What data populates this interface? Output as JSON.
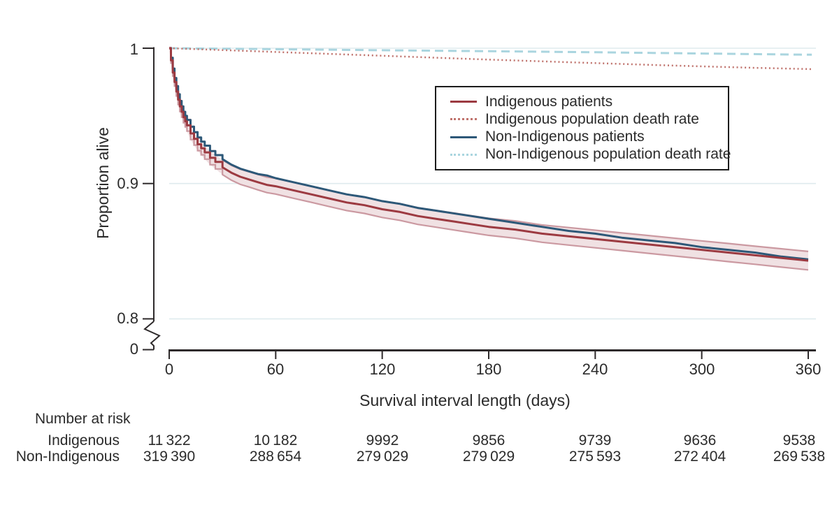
{
  "colors": {
    "indigenous_line": "#9c3a41",
    "indigenous_ci_edge": "#cb99a1",
    "indigenous_ci_fill": "#f0e1e3",
    "indigenous_rate_line": "#c0736d",
    "non_indigenous_line": "#2d5878",
    "non_indigenous_rate_line": "#aad5df",
    "gridline": "#dfebee",
    "axis": "#2e2a2b",
    "text": "#2b2b2b",
    "legend_border": "#1b1b1b"
  },
  "chart_data": {
    "type": "line",
    "subtype": "kaplan-meier-survival",
    "title": "",
    "xlabel": "Survival interval length (days)",
    "ylabel": "Proportion alive",
    "xlim": [
      0,
      365
    ],
    "ylim_shown": [
      0.8,
      1.0
    ],
    "y_axis_break_between": [
      0.8,
      0
    ],
    "x_ticks": [
      0,
      60,
      120,
      180,
      240,
      300,
      360
    ],
    "x_tick_labels": [
      "0",
      "60",
      "120",
      "180",
      "240",
      "300",
      "360"
    ],
    "y_ticks": [
      1,
      0.9,
      0.8
    ],
    "y_tick_labels": [
      "1",
      "0.9",
      "0.8",
      "0"
    ],
    "grid": "horizontal light lines at 1.0, 0.9 and 0.8",
    "legend_position": "upper right inside plot, boxed",
    "series": [
      {
        "name": "Indigenous patients",
        "style": "solid",
        "color": "#9c3a41",
        "ci_fill": "#f0e1e3",
        "ci_edge": "#cb99a1",
        "x": [
          0,
          1,
          2,
          3,
          4,
          5,
          6,
          7,
          8,
          9,
          10,
          12,
          14,
          16,
          18,
          20,
          23,
          26,
          30,
          35,
          40,
          45,
          50,
          55,
          60,
          70,
          80,
          90,
          100,
          110,
          120,
          130,
          140,
          150,
          160,
          170,
          180,
          195,
          210,
          225,
          240,
          255,
          270,
          285,
          300,
          315,
          330,
          345,
          360
        ],
        "y": [
          1,
          0.991,
          0.982,
          0.975,
          0.968,
          0.962,
          0.957,
          0.953,
          0.949,
          0.946,
          0.943,
          0.937,
          0.933,
          0.929,
          0.926,
          0.923,
          0.919,
          0.916,
          0.912,
          0.908,
          0.905,
          0.903,
          0.901,
          0.899,
          0.898,
          0.895,
          0.892,
          0.889,
          0.886,
          0.884,
          0.881,
          0.879,
          0.876,
          0.874,
          0.872,
          0.87,
          0.868,
          0.866,
          0.863,
          0.861,
          0.859,
          0.857,
          0.855,
          0.853,
          0.851,
          0.849,
          0.847,
          0.845,
          0.843
        ],
        "ci_halfwidth": [
          0.0005,
          0.002,
          0.0026,
          0.003,
          0.0033,
          0.0036,
          0.0038,
          0.004,
          0.0041,
          0.0042,
          0.0043,
          0.0045,
          0.0046,
          0.0047,
          0.0048,
          0.005,
          0.0051,
          0.0052,
          0.0054,
          0.0055,
          0.0056,
          0.0056,
          0.0057,
          0.0057,
          0.0058,
          0.0059,
          0.0059,
          0.006,
          0.006,
          0.0061,
          0.0061,
          0.0062,
          0.0062,
          0.0062,
          0.0063,
          0.0063,
          0.0063,
          0.0064,
          0.0064,
          0.0065,
          0.0065,
          0.0065,
          0.0066,
          0.0066,
          0.0066,
          0.0067,
          0.0067,
          0.0068,
          0.0068
        ]
      },
      {
        "name": "Indigenous population death rate",
        "style": "dotted",
        "color": "#c0736d",
        "x": [
          0,
          30,
          60,
          90,
          120,
          150,
          180,
          210,
          240,
          270,
          300,
          330,
          360,
          362
        ],
        "y": [
          1,
          0.9986,
          0.9972,
          0.9958,
          0.9944,
          0.993,
          0.9916,
          0.9903,
          0.989,
          0.9877,
          0.9866,
          0.9855,
          0.9846,
          0.9845
        ]
      },
      {
        "name": "Non-Indigenous patients",
        "style": "solid",
        "color": "#2d5878",
        "x": [
          0,
          1,
          2,
          3,
          4,
          5,
          6,
          7,
          8,
          9,
          10,
          12,
          14,
          16,
          18,
          20,
          23,
          26,
          30,
          35,
          40,
          45,
          50,
          55,
          60,
          70,
          80,
          90,
          100,
          110,
          120,
          130,
          140,
          150,
          160,
          170,
          180,
          195,
          210,
          225,
          240,
          255,
          270,
          285,
          300,
          315,
          330,
          345,
          360
        ],
        "y": [
          1,
          0.993,
          0.985,
          0.978,
          0.972,
          0.966,
          0.961,
          0.957,
          0.953,
          0.95,
          0.947,
          0.942,
          0.938,
          0.934,
          0.931,
          0.928,
          0.924,
          0.921,
          0.918,
          0.914,
          0.911,
          0.909,
          0.907,
          0.906,
          0.904,
          0.901,
          0.898,
          0.895,
          0.892,
          0.89,
          0.887,
          0.885,
          0.882,
          0.88,
          0.878,
          0.876,
          0.874,
          0.871,
          0.868,
          0.865,
          0.863,
          0.86,
          0.858,
          0.856,
          0.853,
          0.851,
          0.849,
          0.846,
          0.844
        ]
      },
      {
        "name": "Non-Indigenous population death rate",
        "style": "dashed",
        "color": "#aad5df",
        "x": [
          0,
          60,
          120,
          180,
          240,
          300,
          360,
          362
        ],
        "y": [
          1,
          0.9993,
          0.9985,
          0.9978,
          0.997,
          0.9961,
          0.9952,
          0.9952
        ]
      }
    ],
    "number_at_risk": {
      "title": "Number at risk",
      "times": [
        0,
        60,
        120,
        180,
        240,
        300,
        360
      ],
      "rows": [
        {
          "label": "Indigenous",
          "values": [
            "11 322",
            "10 182",
            "9992",
            "9856",
            "9739",
            "9636",
            "9538"
          ]
        },
        {
          "label": "Non-Indigenous",
          "values": [
            "319 390",
            "288 654",
            "279 029",
            "279 029",
            "275 593",
            "272 404",
            "269 538"
          ]
        }
      ]
    }
  }
}
